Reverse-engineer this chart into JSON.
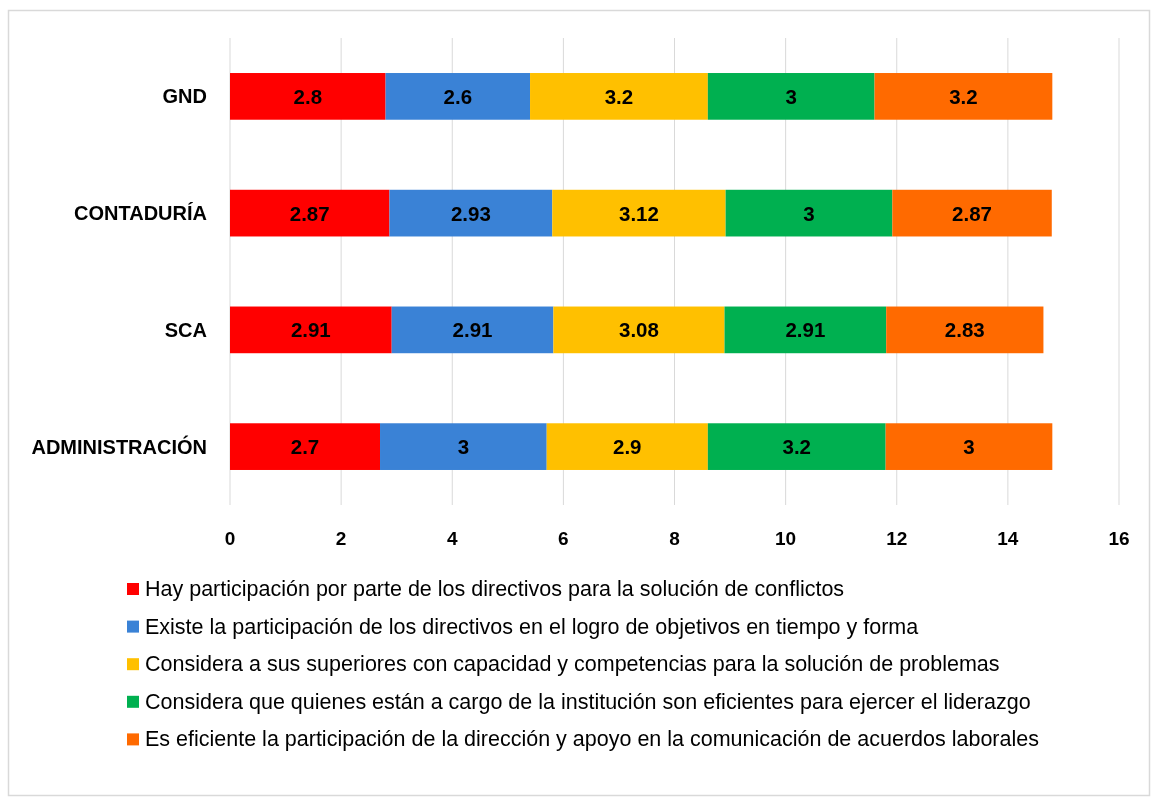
{
  "chart_data": {
    "type": "bar",
    "orientation": "horizontal",
    "stacked": true,
    "categories": [
      "GND",
      "CONTADURÍA",
      "SCA",
      "ADMINISTRACIÓN"
    ],
    "series": [
      {
        "name": "Hay participación por parte de los directivos para la solución de conflictos",
        "color": "#ff0000",
        "values": [
          2.8,
          2.87,
          2.91,
          2.7
        ]
      },
      {
        "name": "Existe la participación de los directivos en el logro de objetivos en tiempo y forma",
        "color": "#3a82d6",
        "values": [
          2.6,
          2.93,
          2.91,
          3
        ]
      },
      {
        "name": "Considera a sus superiores con capacidad y competencias para la solución de problemas",
        "color": "#ffc000",
        "values": [
          3.2,
          3.12,
          3.08,
          2.9
        ]
      },
      {
        "name": "Considera que quienes están a cargo de la institución son eficientes para ejercer el liderazgo",
        "color": "#00b050",
        "values": [
          3,
          3,
          2.91,
          3.2
        ]
      },
      {
        "name": "Es eficiente la participación de la dirección y apoyo en la comunicación de acuerdos laborales",
        "color": "#ff6a00",
        "values": [
          3.2,
          2.87,
          2.83,
          3
        ]
      }
    ],
    "xlim": [
      0,
      16
    ],
    "xticks": [
      0,
      2,
      4,
      6,
      8,
      10,
      12,
      14,
      16
    ],
    "grid": "x",
    "legend": "bottom",
    "data_labels": true
  }
}
